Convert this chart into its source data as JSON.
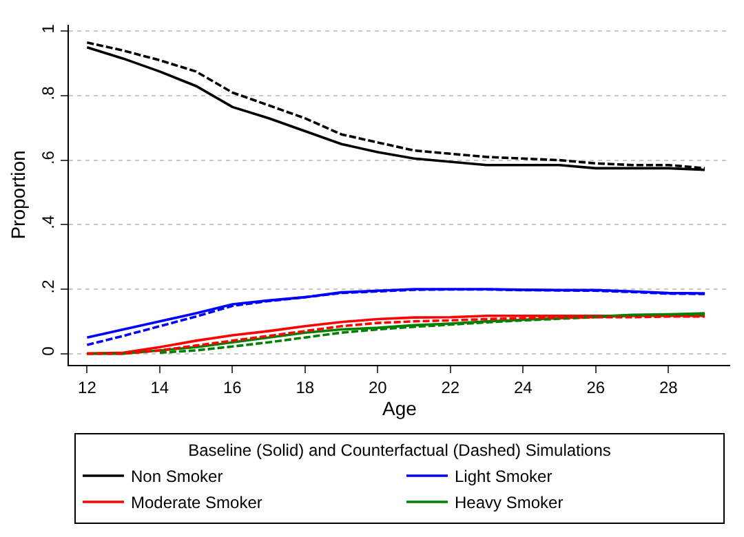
{
  "chart_data": {
    "type": "line",
    "xlabel": "Age",
    "ylabel": "Proportion",
    "legend_title": "Baseline (Solid) and Counterfactual (Dashed) Simulations",
    "x": [
      12,
      13,
      14,
      15,
      16,
      17,
      18,
      19,
      20,
      21,
      22,
      23,
      24,
      25,
      26,
      27,
      28,
      29
    ],
    "series": [
      {
        "name": "Non Smoker",
        "color": "#000000",
        "line_style": "solid",
        "values": [
          0.95,
          0.915,
          0.875,
          0.83,
          0.765,
          0.73,
          0.69,
          0.65,
          0.625,
          0.605,
          0.595,
          0.585,
          0.585,
          0.585,
          0.575,
          0.575,
          0.575,
          0.57
        ]
      },
      {
        "name": "Light Smoker",
        "color": "#0000ff",
        "line_style": "solid",
        "values": [
          0.05,
          0.075,
          0.1,
          0.125,
          0.153,
          0.165,
          0.175,
          0.19,
          0.195,
          0.2,
          0.2,
          0.2,
          0.198,
          0.197,
          0.197,
          0.193,
          0.188,
          0.187
        ]
      },
      {
        "name": "Moderate Smoker",
        "color": "#ff0000",
        "line_style": "solid",
        "values": [
          0,
          0.003,
          0.02,
          0.04,
          0.057,
          0.07,
          0.085,
          0.098,
          0.107,
          0.112,
          0.113,
          0.117,
          0.117,
          0.117,
          0.117,
          0.117,
          0.117,
          0.117
        ]
      },
      {
        "name": "Heavy Smoker",
        "color": "#008000",
        "line_style": "solid",
        "values": [
          0,
          0,
          0.01,
          0.02,
          0.035,
          0.05,
          0.065,
          0.075,
          0.08,
          0.088,
          0.093,
          0.1,
          0.105,
          0.11,
          0.115,
          0.12,
          0.122,
          0.125
        ]
      },
      {
        "color": "#000000",
        "line_style": "dashed",
        "values": [
          0.965,
          0.94,
          0.91,
          0.875,
          0.81,
          0.77,
          0.73,
          0.68,
          0.655,
          0.63,
          0.62,
          0.61,
          0.605,
          0.6,
          0.59,
          0.585,
          0.585,
          0.575
        ]
      },
      {
        "color": "#0000ff",
        "line_style": "dashed",
        "values": [
          0.027,
          0.055,
          0.085,
          0.115,
          0.148,
          0.163,
          0.175,
          0.188,
          0.193,
          0.198,
          0.199,
          0.199,
          0.197,
          0.196,
          0.195,
          0.191,
          0.186,
          0.185
        ]
      },
      {
        "color": "#008000",
        "line_style": "dashed",
        "values": [
          null,
          null,
          0.003,
          0.01,
          0.022,
          0.035,
          0.05,
          0.065,
          0.075,
          0.083,
          0.09,
          0.097,
          0.103,
          0.108,
          0.113,
          0.118,
          0.12,
          0.12
        ]
      },
      {
        "color": "#ff0000",
        "line_style": "dashed",
        "values": [
          0,
          0,
          0.01,
          0.025,
          0.04,
          0.055,
          0.07,
          0.085,
          0.095,
          0.1,
          0.103,
          0.107,
          0.11,
          0.112,
          0.113,
          0.113,
          0.115,
          0.115
        ]
      }
    ],
    "xlim": [
      11.5,
      29.7
    ],
    "xticks": [
      12,
      14,
      16,
      18,
      20,
      22,
      24,
      26,
      28
    ],
    "ylim": [
      -0.035,
      1.02
    ],
    "yticks": [
      0,
      {
        "value": 0.2,
        "label": ".2"
      },
      {
        "value": 0.4,
        "label": ".4"
      },
      {
        "value": 0.6,
        "label": ".6"
      },
      {
        "value": 0.8,
        "label": ".8"
      },
      1
    ],
    "grid": "y",
    "legend": "bottom",
    "marker": "none"
  }
}
